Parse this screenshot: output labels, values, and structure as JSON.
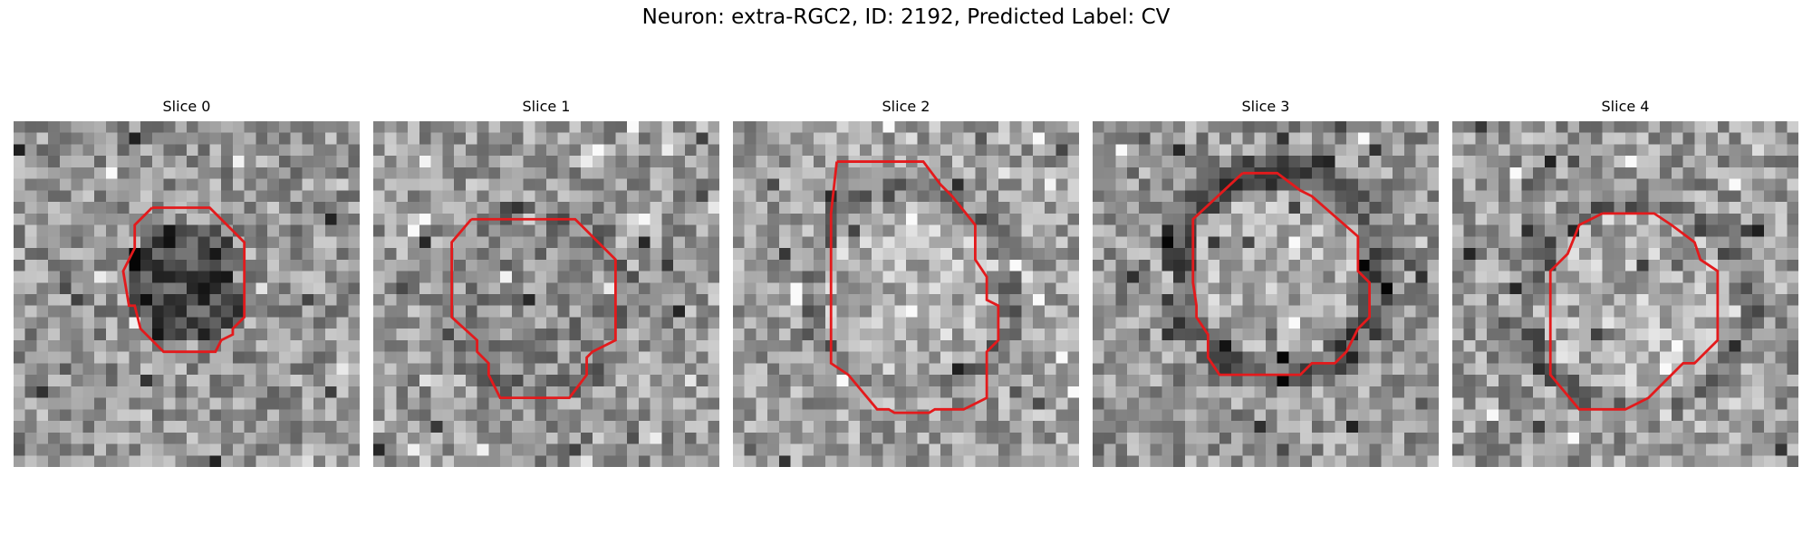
{
  "figure": {
    "title": "Neuron: extra-RGC2, ID: 2192, Predicted Label: CV"
  },
  "panels": [
    {
      "title": "Slice 0",
      "image": "noisy grayscale microscopy slice with dark circular cell",
      "contour_color": "#e31a1c"
    },
    {
      "title": "Slice 1",
      "image": "noisy grayscale microscopy slice with mid-gray cell",
      "contour_color": "#e31a1c"
    },
    {
      "title": "Slice 2",
      "image": "noisy grayscale microscopy slice with bright cell",
      "contour_color": "#e31a1c"
    },
    {
      "title": "Slice 3",
      "image": "noisy grayscale microscopy slice with bright cell and dark ring",
      "contour_color": "#e31a1c"
    },
    {
      "title": "Slice 4",
      "image": "noisy grayscale microscopy slice with bright cell",
      "contour_color": "#e31a1c"
    }
  ]
}
